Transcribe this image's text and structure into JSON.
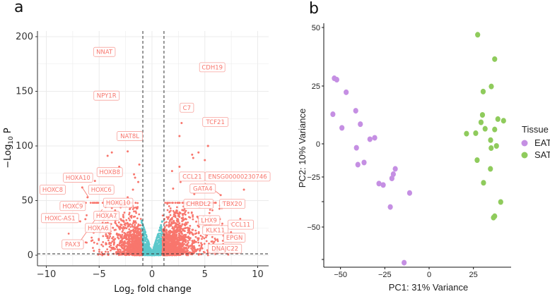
{
  "chart_data": [
    {
      "panel_label": "a",
      "type": "scatter",
      "subtype": "volcano",
      "xlabel": "Log2 fold change",
      "xlabel_parts": {
        "pre": "Log",
        "sub": "2",
        "post": " fold change"
      },
      "ylabel": "-Log10 P",
      "ylabel_parts": {
        "pre": "−Log",
        "sub": "10",
        "post": " P"
      },
      "xlim": [
        -11,
        11
      ],
      "ylim": [
        -8,
        205
      ],
      "x_ticks": [
        -10,
        -5,
        0,
        5,
        10
      ],
      "x_tick_labels": [
        "−10",
        "−5",
        "0",
        "5",
        "10"
      ],
      "y_ticks": [
        0,
        50,
        100,
        150,
        200
      ],
      "y_tick_labels": [
        "0",
        "50",
        "100",
        "150",
        "200"
      ],
      "grid": true,
      "fc_cutoff": [
        -1,
        1
      ],
      "p_cutoff_neglog10": 1.3,
      "colors": {
        "significant": "#F8766D",
        "not_significant": "#5CC8CB"
      },
      "highlight_points": [
        {
          "x": -4.2,
          "y": 91
        },
        {
          "x": -3.8,
          "y": 94
        },
        {
          "x": -2.3,
          "y": 95
        },
        {
          "x": -3.1,
          "y": 81
        },
        {
          "x": -1.2,
          "y": 83
        },
        {
          "x": -1.7,
          "y": 74
        },
        {
          "x": -1.6,
          "y": 71
        },
        {
          "x": -1.3,
          "y": 67
        },
        {
          "x": -5.4,
          "y": 68
        },
        {
          "x": -6.6,
          "y": 62
        },
        {
          "x": -6.1,
          "y": 53
        },
        {
          "x": -1.8,
          "y": 60
        },
        {
          "x": -2.3,
          "y": 53
        },
        {
          "x": 5.3,
          "y": 100
        },
        {
          "x": 3.8,
          "y": 92
        },
        {
          "x": 4.4,
          "y": 94
        },
        {
          "x": 3.9,
          "y": 89
        },
        {
          "x": 5.0,
          "y": 87
        },
        {
          "x": 2.6,
          "y": 81
        },
        {
          "x": 1.9,
          "y": 77
        },
        {
          "x": 2.7,
          "y": 67
        },
        {
          "x": 2.0,
          "y": 61
        },
        {
          "x": 4.0,
          "y": 56
        },
        {
          "x": 8.7,
          "y": 60
        },
        {
          "x": 6.5,
          "y": 55
        },
        {
          "x": 2.8,
          "y": 121
        },
        {
          "x": 2.6,
          "y": 109
        },
        {
          "x": 5.3,
          "y": 100
        },
        {
          "x": -6.8,
          "y": 31
        },
        {
          "x": -6.3,
          "y": 33
        },
        {
          "x": -5.5,
          "y": 4
        }
      ],
      "labels": [
        {
          "gene": "NNAT",
          "x": -4.5,
          "y": 186
        },
        {
          "gene": "CDH19",
          "x": 5.7,
          "y": 172
        },
        {
          "gene": "NPY1R",
          "x": -4.3,
          "y": 146
        },
        {
          "gene": "C7",
          "x": 3.3,
          "y": 135
        },
        {
          "gene": "TCF21",
          "x": 6.0,
          "y": 122
        },
        {
          "gene": "NAT8L",
          "x": -2.1,
          "y": 109
        },
        {
          "gene": "HOXB8",
          "x": -4.0,
          "y": 76
        },
        {
          "gene": "HOXA10",
          "x": -7.0,
          "y": 71
        },
        {
          "gene": "CCL21",
          "x": 3.8,
          "y": 72
        },
        {
          "gene": "ENSG00000230746",
          "x": 8.1,
          "y": 72
        },
        {
          "gene": "HOXC8",
          "x": -9.4,
          "y": 60
        },
        {
          "gene": "HOXC6",
          "x": -4.8,
          "y": 60
        },
        {
          "gene": "GATA4",
          "x": 4.8,
          "y": 61
        },
        {
          "gene": "HOXC10",
          "x": -3.2,
          "y": 48
        },
        {
          "gene": "CHRDL2",
          "x": 4.4,
          "y": 47
        },
        {
          "gene": "TBX20",
          "x": 7.6,
          "y": 47
        },
        {
          "gene": "HOXC9",
          "x": -7.5,
          "y": 45
        },
        {
          "gene": "HOXA7",
          "x": -4.3,
          "y": 36
        },
        {
          "gene": "HOXC-AS1",
          "x": -8.7,
          "y": 34
        },
        {
          "gene": "LHX9",
          "x": 5.4,
          "y": 32
        },
        {
          "gene": "CCL11",
          "x": 8.4,
          "y": 28
        },
        {
          "gene": "HOXA6",
          "x": -5.1,
          "y": 25
        },
        {
          "gene": "KLK11",
          "x": 6.0,
          "y": 23
        },
        {
          "gene": "EPGN",
          "x": 7.8,
          "y": 16
        },
        {
          "gene": "PAX3",
          "x": -7.5,
          "y": 10
        },
        {
          "gene": "DNAJC22",
          "x": 6.9,
          "y": 6
        }
      ]
    },
    {
      "panel_label": "b",
      "type": "scatter",
      "subtype": "pca",
      "xlabel": "PC1: 31% Variance",
      "ylabel": "PC2: 10% Variance",
      "x_ticks": [
        -50,
        -25,
        0,
        25
      ],
      "x_tick_labels": [
        "−50",
        "−25",
        "0",
        "25"
      ],
      "y_ticks": [
        50,
        25,
        0,
        -25,
        -50
      ],
      "y_tick_labels": [
        "50",
        "25",
        "0",
        "−25",
        "−50"
      ],
      "legend": {
        "title": "Tissue",
        "position": "right"
      },
      "series": [
        {
          "name": "EAT",
          "color": "#C58FE3",
          "points": [
            [
              -53.5,
              28.3
            ],
            [
              -52.1,
              27.7
            ],
            [
              -46.8,
              22.3
            ],
            [
              -54.3,
              12.8
            ],
            [
              -41.4,
              14.3
            ],
            [
              -49.2,
              6.9
            ],
            [
              -38.8,
              8.5
            ],
            [
              -33.4,
              2.0
            ],
            [
              -30.7,
              2.6
            ],
            [
              -41.0,
              -3.0
            ],
            [
              -40.2,
              -15.7
            ],
            [
              -36.7,
              -14.1
            ],
            [
              -19.1,
              -18.9
            ],
            [
              -20.2,
              -22.9
            ],
            [
              -21.0,
              -25.7
            ],
            [
              -28.3,
              -28.3
            ],
            [
              -25.9,
              -29.0
            ],
            [
              -11.0,
              -33.0
            ],
            [
              -21.9,
              -40.0
            ],
            [
              -14.1,
              -64.7
            ]
          ]
        },
        {
          "name": "SAT",
          "color": "#8FCB5C",
          "points": [
            [
              27.4,
              46.9
            ],
            [
              37.0,
              36.5
            ],
            [
              35.1,
              24.8
            ],
            [
              30.5,
              22.6
            ],
            [
              30.1,
              12.5
            ],
            [
              29.3,
              9.3
            ],
            [
              38.8,
              10.7
            ],
            [
              42.0,
              10.0
            ],
            [
              31.6,
              6.5
            ],
            [
              37.0,
              6.2
            ],
            [
              21.1,
              4.4
            ],
            [
              26.3,
              4.6
            ],
            [
              34.7,
              1.6
            ],
            [
              35.0,
              -3.2
            ],
            [
              38.0,
              -1.6
            ],
            [
              27.1,
              -12.3
            ],
            [
              34.6,
              -18.9
            ],
            [
              30.7,
              -27.9
            ],
            [
              40.4,
              -37.5
            ],
            [
              37.0,
              -44.6
            ],
            [
              36.3,
              -45.3
            ]
          ]
        }
      ]
    }
  ]
}
